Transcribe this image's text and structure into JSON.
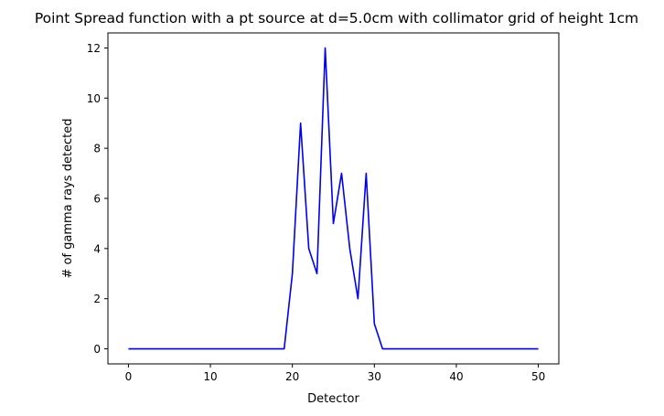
{
  "chart_data": {
    "type": "line",
    "title": "Point Spread function with a pt source at d=5.0cm with collimator grid of height 1cm",
    "xlabel": "Detector",
    "ylabel": "# of gamma rays detected",
    "xlim": [
      -2.5,
      52.5
    ],
    "ylim": [
      -0.6,
      12.6
    ],
    "xticks": [
      0,
      10,
      20,
      30,
      40,
      50
    ],
    "yticks": [
      0,
      2,
      4,
      6,
      8,
      10,
      12
    ],
    "grid": false,
    "series": [
      {
        "color": "#0000ee",
        "x": [
          0,
          1,
          2,
          3,
          4,
          5,
          6,
          7,
          8,
          9,
          10,
          11,
          12,
          13,
          14,
          15,
          16,
          17,
          18,
          19,
          20,
          21,
          22,
          23,
          24,
          25,
          26,
          27,
          28,
          29,
          30,
          31,
          32,
          33,
          34,
          35,
          36,
          37,
          38,
          39,
          40,
          41,
          42,
          43,
          44,
          45,
          46,
          47,
          48,
          49,
          50
        ],
        "y": [
          0,
          0,
          0,
          0,
          0,
          0,
          0,
          0,
          0,
          0,
          0,
          0,
          0,
          0,
          0,
          0,
          0,
          0,
          0,
          0,
          3,
          9,
          4,
          3,
          12,
          5,
          7,
          4,
          2,
          7,
          1,
          0,
          0,
          0,
          0,
          0,
          0,
          0,
          0,
          0,
          0,
          0,
          0,
          0,
          0,
          0,
          0,
          0,
          0,
          0,
          0
        ]
      }
    ]
  }
}
